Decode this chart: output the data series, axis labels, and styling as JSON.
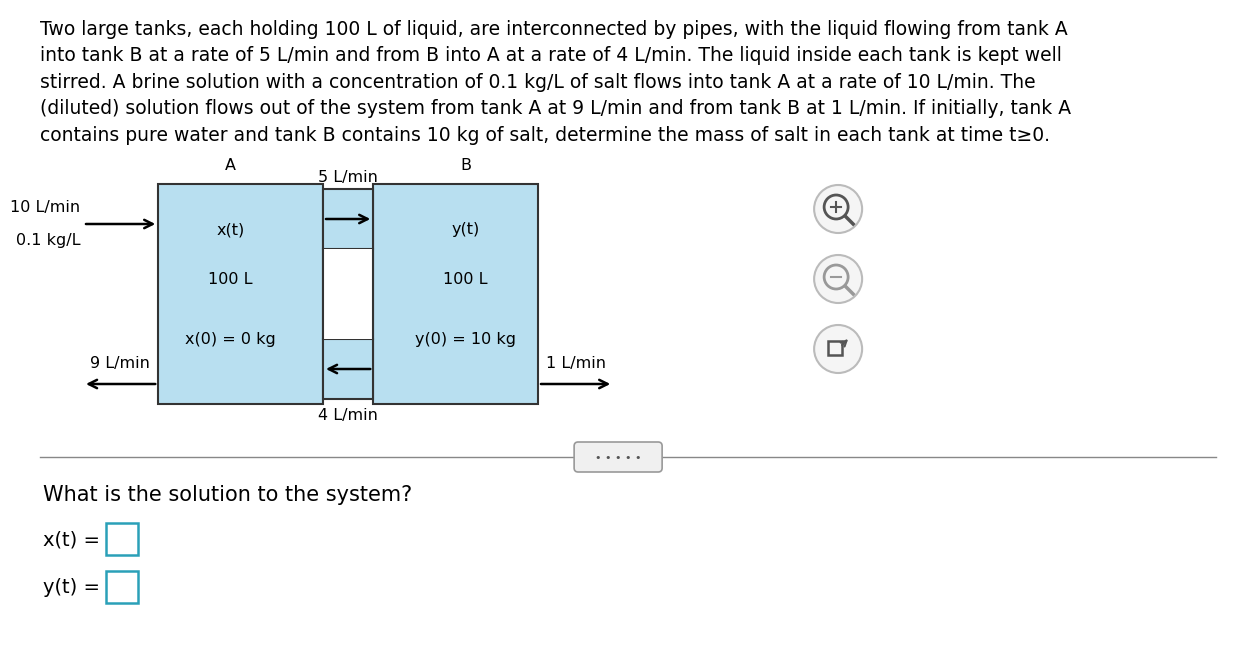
{
  "paragraph_text": "Two large tanks, each holding 100 L of liquid, are interconnected by pipes, with the liquid flowing from tank A\ninto tank B at a rate of 5 L/min and from B into A at a rate of 4 L/min. The liquid inside each tank is kept well\nstirred. A brine solution with a concentration of 0.1 kg/L of salt flows into tank A at a rate of 10 L/min. The\n(diluted) solution flows out of the system from tank A at 9 L/min and from tank B at 1 L/min. If initially, tank A\ncontains pure water and tank B contains 10 kg of salt, determine the mass of salt in each tank at time t≥0.",
  "tank_fill_color": "#b8dff0",
  "tank_border_color": "#333333",
  "label_A": "A",
  "label_B": "B",
  "tank_A_label1": "x(t)",
  "tank_A_label2": "100 L",
  "tank_A_label3": "x(0) = 0 kg",
  "tank_B_label1": "y(t)",
  "tank_B_label2": "100 L",
  "tank_B_label3": "y(0) = 10 kg",
  "inflow_rate": "10 L/min",
  "inflow_conc": "0.1 kg/L",
  "outflow_A_rate": "9 L/min",
  "outflow_B_rate": "1 L/min",
  "flow_AB_rate": "5 L/min",
  "flow_BA_rate": "4 L/min",
  "question_text": "What is the solution to the system?",
  "xt_label": "x(t) =",
  "yt_label": "y(t) =",
  "bg_color": "#ffffff",
  "text_color": "#000000",
  "box_border_color": "#2aa0b8",
  "font_size_para": 13.5,
  "font_size_diagram": 11.5,
  "font_size_question": 15.0,
  "font_size_answer": 14.0
}
